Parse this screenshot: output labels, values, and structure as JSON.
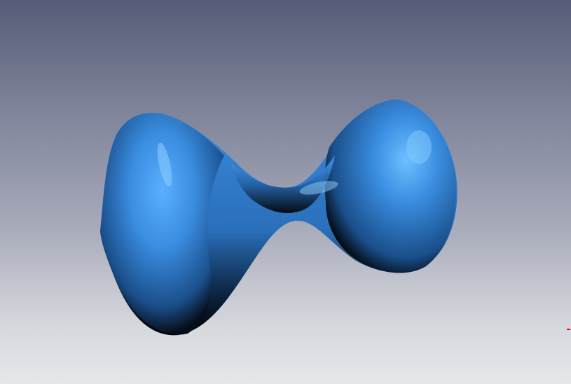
{
  "viewer": {
    "background_top": "#565d78",
    "background_bottom": "#e6e7ea",
    "surface_color": "#3a8de0",
    "surface_shadow": "#000000",
    "axis_marker_color": "#e01010",
    "object": "saddle-surface"
  }
}
